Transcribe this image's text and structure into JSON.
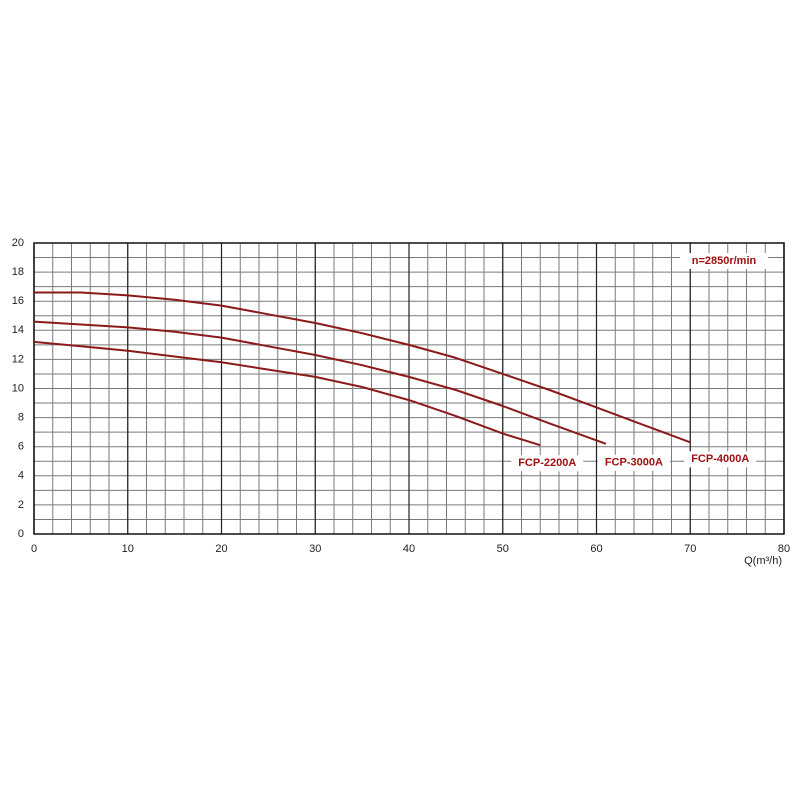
{
  "chart_data": {
    "type": "line",
    "annotation": "n=2850r/min",
    "x_label": "Q(m³/h)",
    "xlim": [
      0,
      80
    ],
    "xticks": [
      0,
      10,
      20,
      30,
      40,
      50,
      60,
      70,
      80
    ],
    "ylim": [
      0,
      20
    ],
    "yticks": [
      0,
      2,
      4,
      6,
      8,
      10,
      12,
      14,
      16,
      18,
      20
    ],
    "xgrid": [
      0,
      2,
      4,
      6,
      8,
      10,
      12,
      14,
      16,
      18,
      20,
      22,
      24,
      26,
      28,
      30,
      32,
      34,
      36,
      38,
      40,
      42,
      44,
      46,
      48,
      50,
      52,
      54,
      56,
      58,
      60,
      62,
      64,
      66,
      68,
      70,
      72,
      74,
      76,
      78,
      80
    ],
    "ygrid": [
      0,
      1,
      2,
      3,
      4,
      5,
      6,
      7,
      8,
      9,
      10,
      11,
      12,
      13,
      14,
      15,
      16,
      17,
      18,
      19,
      20
    ],
    "grid": true,
    "series": [
      {
        "name": "FCP-2200A",
        "color": "#8b1a1a",
        "x": [
          0,
          5,
          10,
          15,
          20,
          25,
          30,
          35,
          40,
          45,
          50,
          54
        ],
        "values": [
          13.2,
          12.9,
          12.6,
          12.2,
          11.8,
          11.3,
          10.8,
          10.1,
          9.2,
          8.1,
          6.9,
          6.1
        ]
      },
      {
        "name": "FCP-3000A",
        "color": "#8b1a1a",
        "x": [
          0,
          5,
          10,
          15,
          20,
          25,
          30,
          35,
          40,
          45,
          50,
          55,
          61
        ],
        "values": [
          14.6,
          14.4,
          14.2,
          13.9,
          13.5,
          12.9,
          12.3,
          11.6,
          10.8,
          9.9,
          8.8,
          7.6,
          6.2
        ]
      },
      {
        "name": "FCP-4000A",
        "color": "#8b1a1a",
        "x": [
          0,
          5,
          10,
          15,
          20,
          25,
          30,
          35,
          40,
          45,
          50,
          55,
          60,
          65,
          70
        ],
        "values": [
          16.6,
          16.6,
          16.4,
          16.1,
          15.7,
          15.1,
          14.5,
          13.8,
          13.0,
          12.1,
          11.0,
          9.9,
          8.7,
          7.5,
          6.3
        ]
      }
    ]
  }
}
